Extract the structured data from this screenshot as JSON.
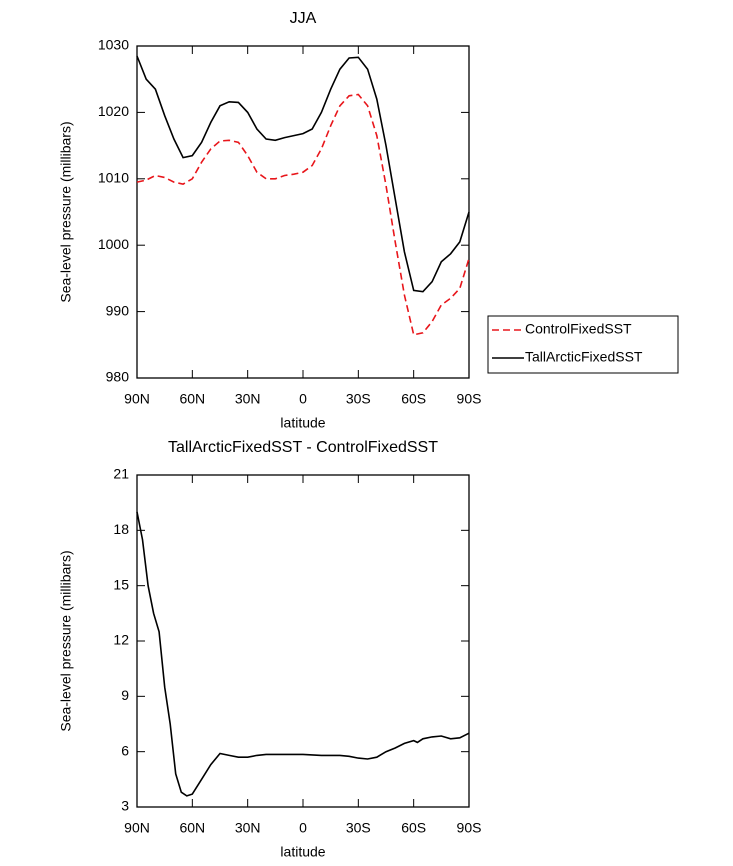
{
  "chart_data": [
    {
      "type": "line",
      "title": "JJA",
      "xlabel": "latitude",
      "ylabel": "Sea-level pressure (millibars)",
      "x": [
        90,
        85,
        80,
        75,
        70,
        65,
        60,
        55,
        50,
        45,
        40,
        35,
        30,
        25,
        20,
        15,
        10,
        5,
        0,
        -5,
        -10,
        -15,
        -20,
        -25,
        -30,
        -35,
        -40,
        -45,
        -50,
        -55,
        -60,
        -65,
        -70,
        -75,
        -80,
        -85,
        -90
      ],
      "series": [
        {
          "name": "ControlFixedSST",
          "color": "#e8161b",
          "dash": "dashed",
          "values": [
            1009.5,
            1009.8,
            1010.5,
            1010.2,
            1009.5,
            1009.2,
            1010,
            1012.5,
            1014.5,
            1015.7,
            1015.8,
            1015.5,
            1013.5,
            1011,
            1010,
            1010,
            1010.5,
            1010.7,
            1011,
            1012,
            1014.5,
            1018,
            1021,
            1022.5,
            1022.7,
            1021,
            1016.5,
            1009,
            1000.5,
            992.5,
            986.5,
            986.8,
            988.5,
            991,
            992,
            993.5,
            998
          ]
        },
        {
          "name": "TallArcticFixedSST",
          "color": "#000000",
          "dash": "solid",
          "values": [
            1028.5,
            1025,
            1023.5,
            1019.5,
            1016,
            1013.2,
            1013.5,
            1015.5,
            1018.5,
            1021,
            1021.6,
            1021.5,
            1020,
            1017.5,
            1016,
            1015.8,
            1016.2,
            1016.5,
            1016.8,
            1017.5,
            1020,
            1023.5,
            1026.5,
            1028.2,
            1028.3,
            1026.5,
            1022,
            1015,
            1007,
            999,
            993.2,
            993,
            994.5,
            997.5,
            998.7,
            1000.5,
            1005
          ]
        }
      ],
      "xlim": [
        90,
        -90
      ],
      "xticks": [
        {
          "value": 90,
          "label": "90N"
        },
        {
          "value": 60,
          "label": "60N"
        },
        {
          "value": 30,
          "label": "30N"
        },
        0,
        {
          "value": -30,
          "label": "30S"
        },
        {
          "value": -60,
          "label": "60S"
        },
        {
          "value": -90,
          "label": "90S"
        }
      ],
      "ylim": [
        980,
        1030
      ],
      "yticks": [
        980,
        990,
        1000,
        1010,
        1020,
        1030
      ],
      "legend": "right"
    },
    {
      "type": "line",
      "title": "TallArcticFixedSST - ControlFixedSST",
      "xlabel": "latitude",
      "ylabel": "Sea-level pressure (millibars)",
      "x": [
        90,
        87,
        84,
        81,
        78,
        75,
        72,
        69,
        66,
        63,
        60,
        55,
        50,
        45,
        40,
        35,
        30,
        25,
        20,
        10,
        0,
        -10,
        -20,
        -25,
        -30,
        -35,
        -40,
        -45,
        -50,
        -55,
        -60,
        -62,
        -65,
        -70,
        -75,
        -80,
        -85,
        -90
      ],
      "series": [
        {
          "color": "#000000",
          "dash": "solid",
          "values": [
            19,
            17.5,
            15,
            13.5,
            12.5,
            9.5,
            7.5,
            4.8,
            3.8,
            3.6,
            3.7,
            4.5,
            5.3,
            5.9,
            5.8,
            5.7,
            5.7,
            5.8,
            5.85,
            5.85,
            5.85,
            5.8,
            5.8,
            5.75,
            5.65,
            5.6,
            5.7,
            6.0,
            6.2,
            6.45,
            6.6,
            6.5,
            6.7,
            6.8,
            6.85,
            6.7,
            6.75,
            7
          ]
        }
      ],
      "xlim": [
        90,
        -90
      ],
      "xticks": [
        {
          "value": 90,
          "label": "90N"
        },
        {
          "value": 60,
          "label": "60N"
        },
        {
          "value": 30,
          "label": "30N"
        },
        0,
        {
          "value": -30,
          "label": "30S"
        },
        {
          "value": -60,
          "label": "60S"
        },
        {
          "value": -90,
          "label": "90S"
        }
      ],
      "ylim": [
        3,
        21
      ],
      "yticks": [
        3,
        6,
        9,
        12,
        15,
        18,
        21
      ]
    }
  ]
}
